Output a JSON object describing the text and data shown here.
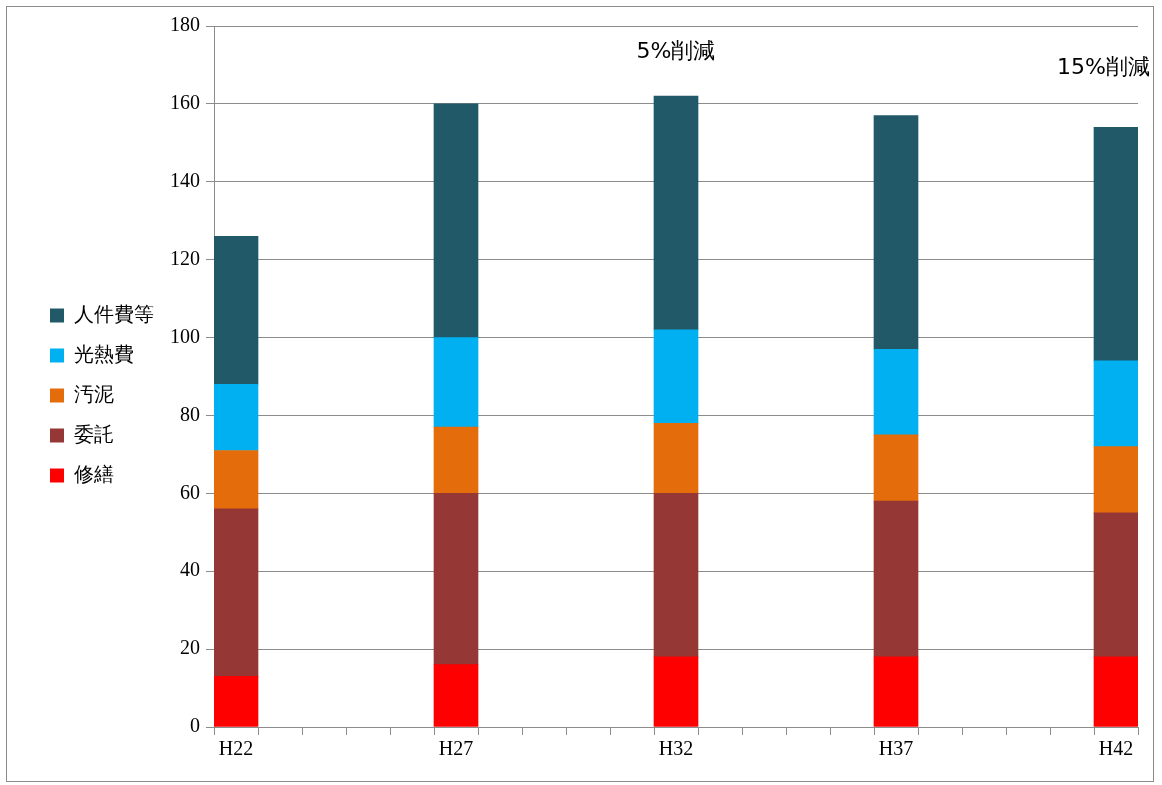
{
  "chart_data": {
    "type": "bar",
    "stacked": true,
    "categories": [
      "H22",
      null,
      null,
      null,
      null,
      "H27",
      null,
      null,
      null,
      null,
      "H32",
      null,
      null,
      null,
      null,
      "H37",
      null,
      null,
      null,
      null,
      "H42"
    ],
    "series": [
      {
        "name": "修繕",
        "color": "#ff0000",
        "values": [
          13,
          null,
          null,
          null,
          null,
          16,
          null,
          null,
          null,
          null,
          18,
          null,
          null,
          null,
          null,
          18,
          null,
          null,
          null,
          null,
          18
        ]
      },
      {
        "name": "委託",
        "color": "#953735",
        "values": [
          43,
          null,
          null,
          null,
          null,
          44,
          null,
          null,
          null,
          null,
          42,
          null,
          null,
          null,
          null,
          40,
          null,
          null,
          null,
          null,
          37
        ]
      },
      {
        "name": "汚泥",
        "color": "#e46c0a",
        "values": [
          15,
          null,
          null,
          null,
          null,
          17,
          null,
          null,
          null,
          null,
          18,
          null,
          null,
          null,
          null,
          17,
          null,
          null,
          null,
          null,
          17
        ]
      },
      {
        "name": "光熱費",
        "color": "#00b0f0",
        "values": [
          17,
          null,
          null,
          null,
          null,
          23,
          null,
          null,
          null,
          null,
          24,
          null,
          null,
          null,
          null,
          22,
          null,
          null,
          null,
          null,
          22
        ]
      },
      {
        "name": "人件費等",
        "color": "#215968",
        "values": [
          38,
          null,
          null,
          null,
          null,
          60,
          null,
          null,
          null,
          null,
          60,
          null,
          null,
          null,
          null,
          60,
          null,
          null,
          null,
          null,
          60
        ]
      }
    ],
    "ylim": [
      0,
      180
    ],
    "yticks": [
      0,
      20,
      40,
      60,
      80,
      100,
      120,
      140,
      160,
      180
    ],
    "grid": "y",
    "legend": "left",
    "annotations": [
      "5%削減",
      "15%削減"
    ]
  }
}
